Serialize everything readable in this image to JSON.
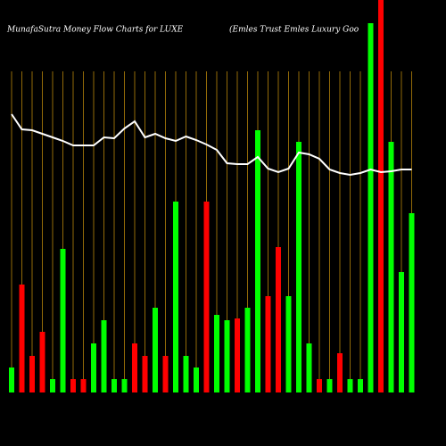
{
  "chart_data": {
    "type": "bar",
    "title": "MunafaSutra  Money Flow  Charts for LUXE",
    "subtitle": "(Emles Trust Emles Luxury Goo",
    "categories": [
      null,
      null,
      null,
      null,
      null,
      null,
      null,
      null,
      null,
      null,
      null,
      null,
      null,
      null,
      null,
      null,
      null,
      null,
      null,
      null,
      null,
      null,
      null,
      null,
      null,
      null,
      null,
      null,
      null,
      null,
      null,
      null,
      null,
      null,
      null,
      null,
      null,
      null,
      null,
      null
    ],
    "values": [
      28,
      121,
      41,
      68,
      15,
      161,
      15,
      15,
      55,
      81,
      15,
      15,
      55,
      41,
      95,
      41,
      214,
      41,
      28,
      214,
      87,
      81,
      83,
      95,
      294,
      108,
      163,
      108,
      281,
      55,
      15,
      15,
      44,
      15,
      15,
      414,
      440,
      281,
      135,
      201
    ],
    "colors": [
      "#00ff00",
      "#ff0000",
      "#ff0000",
      "#ff0000",
      "#00ff00",
      "#00ff00",
      "#ff0000",
      "#ff0000",
      "#00ff00",
      "#00ff00",
      "#00ff00",
      "#00ff00",
      "#ff0000",
      "#ff0000",
      "#00ff00",
      "#ff0000",
      "#00ff00",
      "#00ff00",
      "#00ff00",
      "#ff0000",
      "#00ff00",
      "#00ff00",
      "#ff0000",
      "#00ff00",
      "#00ff00",
      "#ff0000",
      "#ff0000",
      "#00ff00",
      "#00ff00",
      "#00ff00",
      "#ff0000",
      "#00ff00",
      "#ff0000",
      "#00ff00",
      "#00ff00",
      "#00ff00",
      "#ff0000",
      "#00ff00",
      "#00ff00",
      "#00ff00"
    ],
    "line": {
      "color": "#ffffff",
      "values": [
        312,
        295,
        294,
        290,
        286,
        282,
        277,
        277,
        277,
        286,
        285,
        296,
        304,
        286,
        290,
        285,
        282,
        287,
        283,
        278,
        272,
        257,
        256,
        256,
        264,
        251,
        247,
        251,
        269,
        267,
        262,
        250,
        246,
        244,
        246,
        250,
        247,
        248,
        250,
        250
      ]
    },
    "ylim": [
      0,
      440
    ],
    "grid_color": "#b8860b"
  }
}
